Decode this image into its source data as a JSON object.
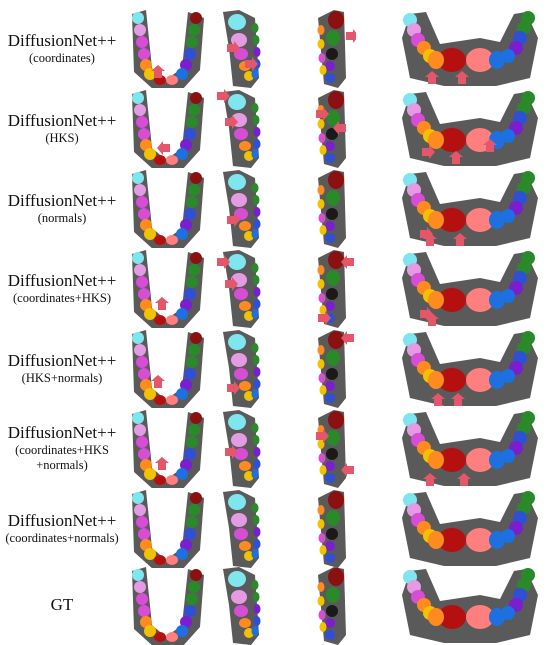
{
  "rows": [
    {
      "title": "DiffusionNet++",
      "sub": [
        "(coordinates)"
      ]
    },
    {
      "title": "DiffusionNet++",
      "sub": [
        "(HKS)"
      ]
    },
    {
      "title": "DiffusionNet++",
      "sub": [
        "(normals)"
      ]
    },
    {
      "title": "DiffusionNet++",
      "sub": [
        "(coordinates+HKS)"
      ]
    },
    {
      "title": "DiffusionNet++",
      "sub": [
        "(HKS+normals)"
      ]
    },
    {
      "title": "DiffusionNet++",
      "sub": [
        "(coordinates+HKS",
        "+normals)"
      ]
    },
    {
      "title": "DiffusionNet++",
      "sub": [
        "(coordinates+normals)"
      ]
    },
    {
      "title": "GT",
      "sub": []
    }
  ],
  "colors": {
    "gum": "#5a5a5a",
    "arrow": "#e4566a",
    "teeth": [
      "#8b1010",
      "#2a8a2a",
      "#1a1a1a",
      "#2f4fd6",
      "#7a1fd0",
      "#1e6fe0",
      "#ff7f7f",
      "#b51010",
      "#f2c200",
      "#ff8a1f",
      "#d64dd6",
      "#e49be4",
      "#7fe6f0"
    ]
  }
}
